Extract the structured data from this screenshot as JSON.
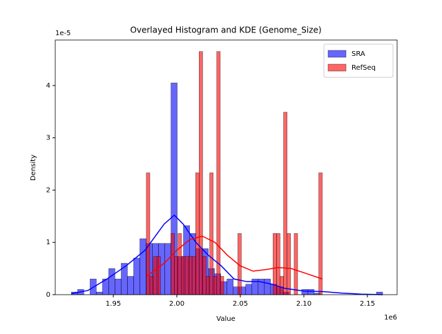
{
  "chart_data": {
    "type": "histogram",
    "title": "Overlayed Histogram and KDE (Genome_Size)",
    "x_label": "Value",
    "y_label": "Density",
    "x_offset_label": "1e6",
    "y_offset_label": "1e-5",
    "xlim": [
      1904300,
      2173400
    ],
    "ylim": [
      0,
      4.87e-05
    ],
    "xticks": [
      {
        "value": 1950000,
        "label": "1.95"
      },
      {
        "value": 2000000,
        "label": "2.00"
      },
      {
        "value": 2050000,
        "label": "2.05"
      },
      {
        "value": 2100000,
        "label": "2.10"
      },
      {
        "value": 2150000,
        "label": "2.15"
      }
    ],
    "yticks": [
      0,
      {
        "value": 1e-05,
        "label": "1"
      },
      {
        "value": 2e-05,
        "label": "2"
      },
      {
        "value": 3e-05,
        "label": "3"
      },
      {
        "value": 4e-05,
        "label": "4"
      }
    ],
    "legend": "upper right",
    "series": [
      {
        "name": "SRA",
        "color": "#0000ff",
        "bins": [
          1917000,
          1921900,
          1926800,
          1931700,
          1936600,
          1941500,
          1946400,
          1951300,
          1956200,
          1961100,
          1966000,
          1970900,
          1975800,
          1980700,
          1985600,
          1990500,
          1995400,
          2000300,
          2005200,
          2010100,
          2015000,
          2019900,
          2024800,
          2029700,
          2034600,
          2039500,
          2044400,
          2049300,
          2054200,
          2059100,
          2064000,
          2068900,
          2073800,
          2078700,
          2083600,
          2088500,
          2093400,
          2098300,
          2103200,
          2108100,
          2113000,
          2117900,
          2122800,
          2127700,
          2132600,
          2137500,
          2142400,
          2147300,
          2152200,
          2157100,
          2162000
        ],
        "values": [
          5e-07,
          1e-06,
          0,
          3e-06,
          5e-07,
          3e-06,
          5e-06,
          3e-06,
          6e-06,
          3.5e-06,
          7e-06,
          1.07e-05,
          9.8e-06,
          9.8e-06,
          9.8e-06,
          9.8e-06,
          4.05e-05,
          7.3e-06,
          1.32e-05,
          1.17e-05,
          8.8e-06,
          8.8e-06,
          5e-06,
          4e-06,
          2.5e-06,
          3e-06,
          1.5e-06,
          1.5e-06,
          2e-06,
          3e-06,
          3e-06,
          3e-06,
          2e-06,
          1.5e-06,
          5e-07,
          0,
          0,
          1e-06,
          1e-06,
          3e-07,
          0,
          0,
          0,
          0,
          0,
          0,
          0,
          0,
          0,
          5e-07
        ],
        "kde_x": [
          1917000,
          1930000,
          1945000,
          1960000,
          1975000,
          1990000,
          1998000,
          2005000,
          2015000,
          2025000,
          2035000,
          2045000,
          2055000,
          2065000,
          2075000,
          2085000,
          2100000,
          2115000,
          2130000,
          2145000,
          2162000
        ],
        "kde_values": [
          2e-07,
          8e-07,
          3e-06,
          5.5e-06,
          8.5e-06,
          1.35e-05,
          1.52e-05,
          1.35e-05,
          1e-05,
          7.5e-06,
          5.5e-06,
          3e-06,
          2.5e-06,
          2.5e-06,
          2e-06,
          1.2e-06,
          7e-07,
          6e-07,
          3e-07,
          1e-07,
          0
        ]
      },
      {
        "name": "RefSeq",
        "color": "#ff0000",
        "bins": [
          1976000,
          1978770,
          1981540,
          1984310,
          1987080,
          1989850,
          1992620,
          1995390,
          1998160,
          2000930,
          2003700,
          2006470,
          2009240,
          2012010,
          2014780,
          2017550,
          2020320,
          2023090,
          2025860,
          2028630,
          2031400,
          2034170,
          2036940,
          2039710,
          2042480,
          2045250,
          2048020,
          2050790,
          2053560,
          2056330,
          2059100,
          2061870,
          2064640,
          2067410,
          2070180,
          2072950,
          2075720,
          2078490,
          2081260,
          2084030,
          2086800,
          2089570,
          2092340,
          2095110,
          2097880,
          2100650,
          2103420,
          2106190,
          2108960,
          2111730,
          2114500
        ],
        "values": [
          2.33e-05,
          3.5e-06,
          7.3e-06,
          7.3e-06,
          0,
          0,
          0,
          1.17e-05,
          7.3e-06,
          1.17e-05,
          7.3e-06,
          7.3e-06,
          7.3e-06,
          7.3e-06,
          2.33e-05,
          4.65e-05,
          7.3e-06,
          3.5e-06,
          2.33e-05,
          3.5e-06,
          4.65e-05,
          3.5e-06,
          0,
          0,
          0,
          0,
          1.17e-05,
          0,
          0,
          0,
          0,
          0,
          0,
          0,
          0,
          0,
          1.17e-05,
          1.17e-05,
          3.5e-06,
          3.49e-05,
          1.17e-05,
          0,
          1.17e-05,
          0,
          0,
          0,
          0,
          0,
          0,
          2.33e-05
        ],
        "kde_x": [
          1976000,
          1990000,
          2000000,
          2010000,
          2020000,
          2030000,
          2040000,
          2050000,
          2060000,
          2070000,
          2080000,
          2090000,
          2100000,
          2114500
        ],
        "kde_values": [
          3.5e-06,
          6e-06,
          8.5e-06,
          1.05e-05,
          1.12e-05,
          1e-05,
          7.5e-06,
          5.5e-06,
          4.5e-06,
          4.8e-06,
          5.2e-06,
          5e-06,
          4.2e-06,
          3e-06
        ]
      }
    ]
  }
}
